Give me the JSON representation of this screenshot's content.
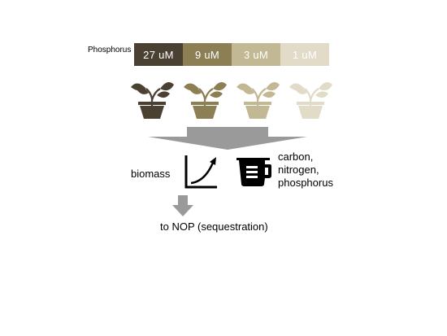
{
  "phosphorus_label": "Phosphorus",
  "concentrations": [
    {
      "label": "27 uM",
      "color": "#4a4132"
    },
    {
      "label": "9 uM",
      "color": "#8c7f54"
    },
    {
      "label": "3 uM",
      "color": "#c3b894"
    },
    {
      "label": "1 uM",
      "color": "#e1dbc8"
    }
  ],
  "outputs": {
    "biomass_label": "biomass",
    "elements": [
      "carbon,",
      "nitrogen,",
      "phosphorus"
    ]
  },
  "sink_label": "to NOP (sequestration)",
  "icons": {
    "plant": "potted-plant-icon",
    "growth": "growth-curve-icon",
    "cup": "measuring-cup-icon"
  },
  "arrow_color": "#9a9a9a"
}
